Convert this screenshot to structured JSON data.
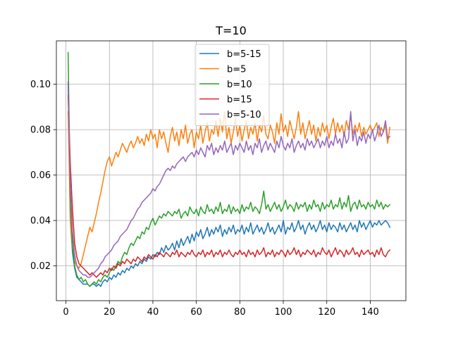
{
  "chart_data": {
    "type": "line",
    "title": "T=10",
    "xlabel": "",
    "ylabel": "",
    "xlim": [
      -4.4,
      156.4
    ],
    "ylim": [
      0.0047,
      0.1191
    ],
    "xticks": [
      0,
      20,
      40,
      60,
      80,
      100,
      120,
      140
    ],
    "xtick_labels": [
      "0",
      "20",
      "40",
      "60",
      "80",
      "100",
      "120",
      "140"
    ],
    "yticks": [
      0.02,
      0.04,
      0.06,
      0.08,
      0.1
    ],
    "ytick_labels": [
      "0.02",
      "0.04",
      "0.06",
      "0.08",
      "0.10"
    ],
    "grid": true,
    "legend_position": "upper-center",
    "x_start": 1,
    "x_step": 1,
    "series": [
      {
        "name": "b=5-15",
        "color": "#1f77b4",
        "values": [
          0.1,
          0.04,
          0.026,
          0.019,
          0.015,
          0.014,
          0.013,
          0.012,
          0.012,
          0.012,
          0.011,
          0.012,
          0.012,
          0.011,
          0.012,
          0.011,
          0.013,
          0.014,
          0.013,
          0.015,
          0.014,
          0.016,
          0.015,
          0.017,
          0.016,
          0.018,
          0.017,
          0.019,
          0.018,
          0.02,
          0.019,
          0.021,
          0.02,
          0.022,
          0.021,
          0.023,
          0.022,
          0.024,
          0.023,
          0.025,
          0.024,
          0.026,
          0.025,
          0.028,
          0.026,
          0.029,
          0.027,
          0.028,
          0.03,
          0.027,
          0.031,
          0.028,
          0.032,
          0.029,
          0.031,
          0.033,
          0.03,
          0.034,
          0.031,
          0.035,
          0.033,
          0.036,
          0.032,
          0.034,
          0.037,
          0.033,
          0.036,
          0.034,
          0.037,
          0.035,
          0.038,
          0.033,
          0.036,
          0.034,
          0.037,
          0.035,
          0.038,
          0.034,
          0.036,
          0.035,
          0.038,
          0.034,
          0.037,
          0.035,
          0.039,
          0.034,
          0.036,
          0.038,
          0.035,
          0.037,
          0.034,
          0.036,
          0.039,
          0.035,
          0.037,
          0.034,
          0.036,
          0.038,
          0.035,
          0.04,
          0.034,
          0.037,
          0.036,
          0.039,
          0.035,
          0.037,
          0.04,
          0.036,
          0.038,
          0.034,
          0.037,
          0.039,
          0.036,
          0.038,
          0.035,
          0.037,
          0.04,
          0.036,
          0.038,
          0.035,
          0.039,
          0.036,
          0.038,
          0.037,
          0.035,
          0.039,
          0.036,
          0.038,
          0.035,
          0.037,
          0.039,
          0.036,
          0.038,
          0.035,
          0.04,
          0.037,
          0.039,
          0.036,
          0.038,
          0.04,
          0.037,
          0.039,
          0.038,
          0.04,
          0.038,
          0.039,
          0.04,
          0.039,
          0.037
        ]
      },
      {
        "name": "b=5",
        "color": "#ff7f0e",
        "values": [
          0.088,
          0.04,
          0.028,
          0.022,
          0.02,
          0.019,
          0.021,
          0.025,
          0.029,
          0.033,
          0.037,
          0.035,
          0.039,
          0.043,
          0.048,
          0.052,
          0.057,
          0.062,
          0.066,
          0.068,
          0.064,
          0.067,
          0.07,
          0.068,
          0.071,
          0.074,
          0.072,
          0.07,
          0.073,
          0.075,
          0.072,
          0.074,
          0.077,
          0.074,
          0.076,
          0.073,
          0.078,
          0.075,
          0.08,
          0.076,
          0.078,
          0.072,
          0.08,
          0.076,
          0.079,
          0.074,
          0.07,
          0.077,
          0.081,
          0.075,
          0.079,
          0.073,
          0.08,
          0.076,
          0.082,
          0.074,
          0.078,
          0.08,
          0.072,
          0.079,
          0.076,
          0.082,
          0.074,
          0.079,
          0.083,
          0.075,
          0.08,
          0.078,
          0.084,
          0.077,
          0.085,
          0.079,
          0.088,
          0.076,
          0.081,
          0.074,
          0.079,
          0.085,
          0.077,
          0.082,
          0.075,
          0.08,
          0.084,
          0.076,
          0.081,
          0.078,
          0.083,
          0.075,
          0.082,
          0.079,
          0.086,
          0.078,
          0.076,
          0.082,
          0.079,
          0.074,
          0.083,
          0.078,
          0.087,
          0.079,
          0.082,
          0.077,
          0.084,
          0.08,
          0.076,
          0.081,
          0.088,
          0.078,
          0.083,
          0.076,
          0.08,
          0.084,
          0.078,
          0.082,
          0.075,
          0.081,
          0.077,
          0.083,
          0.079,
          0.082,
          0.076,
          0.081,
          0.085,
          0.078,
          0.083,
          0.079,
          0.082,
          0.077,
          0.084,
          0.08,
          0.086,
          0.078,
          0.082,
          0.079,
          0.083,
          0.077,
          0.081,
          0.078,
          0.08,
          0.082,
          0.079,
          0.081,
          0.083,
          0.077,
          0.081,
          0.079,
          0.082,
          0.074,
          0.081
        ]
      },
      {
        "name": "b=10",
        "color": "#2ca02c",
        "values": [
          0.114,
          0.05,
          0.03,
          0.02,
          0.016,
          0.014,
          0.015,
          0.013,
          0.014,
          0.012,
          0.011,
          0.012,
          0.013,
          0.012,
          0.014,
          0.013,
          0.015,
          0.016,
          0.015,
          0.017,
          0.019,
          0.018,
          0.02,
          0.022,
          0.021,
          0.024,
          0.026,
          0.025,
          0.028,
          0.03,
          0.029,
          0.031,
          0.033,
          0.032,
          0.035,
          0.034,
          0.037,
          0.036,
          0.039,
          0.041,
          0.038,
          0.04,
          0.042,
          0.041,
          0.043,
          0.042,
          0.044,
          0.043,
          0.042,
          0.044,
          0.043,
          0.045,
          0.041,
          0.043,
          0.044,
          0.042,
          0.046,
          0.044,
          0.043,
          0.045,
          0.042,
          0.046,
          0.044,
          0.043,
          0.047,
          0.044,
          0.045,
          0.043,
          0.046,
          0.044,
          0.048,
          0.043,
          0.045,
          0.044,
          0.047,
          0.043,
          0.046,
          0.044,
          0.045,
          0.043,
          0.047,
          0.044,
          0.046,
          0.045,
          0.048,
          0.044,
          0.046,
          0.045,
          0.043,
          0.047,
          0.053,
          0.045,
          0.047,
          0.044,
          0.046,
          0.048,
          0.045,
          0.047,
          0.044,
          0.046,
          0.049,
          0.045,
          0.047,
          0.046,
          0.044,
          0.048,
          0.045,
          0.047,
          0.046,
          0.048,
          0.044,
          0.047,
          0.045,
          0.049,
          0.046,
          0.047,
          0.044,
          0.048,
          0.045,
          0.047,
          0.046,
          0.049,
          0.045,
          0.047,
          0.046,
          0.05,
          0.045,
          0.048,
          0.046,
          0.051,
          0.044,
          0.047,
          0.048,
          0.045,
          0.049,
          0.046,
          0.047,
          0.045,
          0.048,
          0.046,
          0.047,
          0.045,
          0.049,
          0.046,
          0.048,
          0.045,
          0.047,
          0.046,
          0.047
        ]
      },
      {
        "name": "b=15",
        "color": "#d62728",
        "values": [
          0.095,
          0.065,
          0.045,
          0.03,
          0.024,
          0.021,
          0.02,
          0.019,
          0.018,
          0.017,
          0.016,
          0.017,
          0.016,
          0.015,
          0.016,
          0.017,
          0.016,
          0.018,
          0.017,
          0.019,
          0.018,
          0.02,
          0.019,
          0.021,
          0.02,
          0.022,
          0.021,
          0.023,
          0.022,
          0.021,
          0.023,
          0.022,
          0.024,
          0.023,
          0.022,
          0.024,
          0.023,
          0.025,
          0.024,
          0.023,
          0.025,
          0.024,
          0.026,
          0.025,
          0.024,
          0.026,
          0.025,
          0.024,
          0.026,
          0.025,
          0.027,
          0.024,
          0.026,
          0.025,
          0.024,
          0.026,
          0.025,
          0.027,
          0.025,
          0.024,
          0.026,
          0.025,
          0.027,
          0.024,
          0.026,
          0.025,
          0.027,
          0.024,
          0.026,
          0.025,
          0.027,
          0.024,
          0.026,
          0.025,
          0.027,
          0.025,
          0.024,
          0.026,
          0.025,
          0.027,
          0.025,
          0.026,
          0.024,
          0.027,
          0.025,
          0.026,
          0.024,
          0.027,
          0.025,
          0.026,
          0.028,
          0.024,
          0.026,
          0.025,
          0.027,
          0.024,
          0.026,
          0.025,
          0.027,
          0.026,
          0.024,
          0.027,
          0.025,
          0.026,
          0.028,
          0.025,
          0.027,
          0.024,
          0.026,
          0.025,
          0.027,
          0.026,
          0.025,
          0.027,
          0.024,
          0.026,
          0.025,
          0.028,
          0.026,
          0.025,
          0.027,
          0.024,
          0.026,
          0.028,
          0.025,
          0.027,
          0.026,
          0.024,
          0.027,
          0.025,
          0.026,
          0.028,
          0.025,
          0.026,
          0.024,
          0.027,
          0.025,
          0.026,
          0.027,
          0.025,
          0.026,
          0.024,
          0.027,
          0.025,
          0.028,
          0.025,
          0.024,
          0.026,
          0.027
        ]
      },
      {
        "name": "b=5-10",
        "color": "#9467bd",
        "values": [
          0.101,
          0.055,
          0.035,
          0.025,
          0.02,
          0.018,
          0.017,
          0.016,
          0.016,
          0.015,
          0.015,
          0.016,
          0.017,
          0.018,
          0.019,
          0.021,
          0.022,
          0.024,
          0.025,
          0.026,
          0.027,
          0.029,
          0.03,
          0.031,
          0.033,
          0.034,
          0.035,
          0.036,
          0.038,
          0.04,
          0.041,
          0.043,
          0.045,
          0.046,
          0.048,
          0.049,
          0.05,
          0.051,
          0.052,
          0.054,
          0.053,
          0.055,
          0.056,
          0.058,
          0.06,
          0.062,
          0.063,
          0.062,
          0.064,
          0.063,
          0.065,
          0.066,
          0.067,
          0.068,
          0.066,
          0.068,
          0.069,
          0.07,
          0.068,
          0.071,
          0.069,
          0.072,
          0.07,
          0.068,
          0.073,
          0.071,
          0.074,
          0.069,
          0.072,
          0.07,
          0.073,
          0.071,
          0.075,
          0.07,
          0.072,
          0.074,
          0.069,
          0.073,
          0.071,
          0.074,
          0.072,
          0.07,
          0.075,
          0.071,
          0.073,
          0.069,
          0.074,
          0.072,
          0.076,
          0.07,
          0.073,
          0.075,
          0.071,
          0.074,
          0.072,
          0.07,
          0.075,
          0.072,
          0.077,
          0.073,
          0.071,
          0.074,
          0.072,
          0.076,
          0.07,
          0.073,
          0.075,
          0.072,
          0.074,
          0.071,
          0.076,
          0.073,
          0.075,
          0.072,
          0.074,
          0.076,
          0.072,
          0.075,
          0.073,
          0.077,
          0.072,
          0.075,
          0.073,
          0.078,
          0.074,
          0.076,
          0.072,
          0.079,
          0.074,
          0.076,
          0.088,
          0.075,
          0.08,
          0.073,
          0.077,
          0.075,
          0.079,
          0.074,
          0.078,
          0.076,
          0.08,
          0.075,
          0.078,
          0.082,
          0.077,
          0.079,
          0.084,
          0.076,
          0.077
        ]
      }
    ]
  }
}
